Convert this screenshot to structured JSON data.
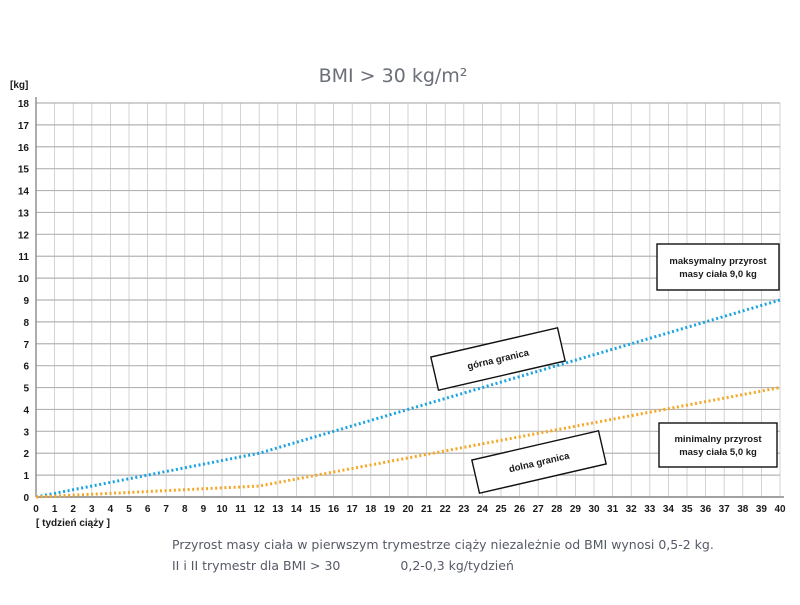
{
  "chart_data": {
    "type": "line",
    "title": "BMI > 30 kg/m²",
    "ylabel": "[kg]",
    "xlabel": "[ tydzień ciąży ]",
    "xlim": [
      0,
      40
    ],
    "ylim": [
      0,
      18
    ],
    "x_ticks": [
      0,
      1,
      2,
      3,
      4,
      5,
      6,
      7,
      8,
      9,
      10,
      11,
      12,
      13,
      14,
      15,
      16,
      17,
      18,
      19,
      20,
      21,
      22,
      23,
      24,
      25,
      26,
      27,
      28,
      29,
      30,
      31,
      32,
      33,
      34,
      35,
      36,
      37,
      38,
      39,
      40
    ],
    "y_ticks": [
      0,
      1,
      2,
      3,
      4,
      5,
      6,
      7,
      8,
      9,
      10,
      11,
      12,
      13,
      14,
      15,
      16,
      17,
      18
    ],
    "grid": true,
    "series": [
      {
        "name": "górna granica",
        "color": "#1aa3e0",
        "style": "dotted",
        "x": [
          0,
          12,
          40
        ],
        "y": [
          0,
          2,
          9
        ]
      },
      {
        "name": "dolna granica",
        "color": "#f5a623",
        "style": "dotted",
        "x": [
          0,
          12,
          40
        ],
        "y": [
          0,
          0.5,
          5
        ]
      }
    ],
    "annotations": [
      {
        "id": "upper-bound-label",
        "lines": [
          "górna granica"
        ]
      },
      {
        "id": "lower-bound-label",
        "lines": [
          "dolna granica"
        ]
      },
      {
        "id": "max-gain-label",
        "lines": [
          "maksymalny przyrost",
          "masy ciała 9,0 kg"
        ]
      },
      {
        "id": "min-gain-label",
        "lines": [
          "minimalny przyrost",
          "masy ciała 5,0 kg"
        ]
      }
    ]
  },
  "footnotes": {
    "line1": "Przyrost masy ciała w pierwszym trymestrze ciąży niezależnie od BMI wynosi 0,5-2 kg.",
    "line2_left": "II i II trymestr dla BMI > 30",
    "line2_right": "0,2-0,3 kg/tydzień"
  }
}
